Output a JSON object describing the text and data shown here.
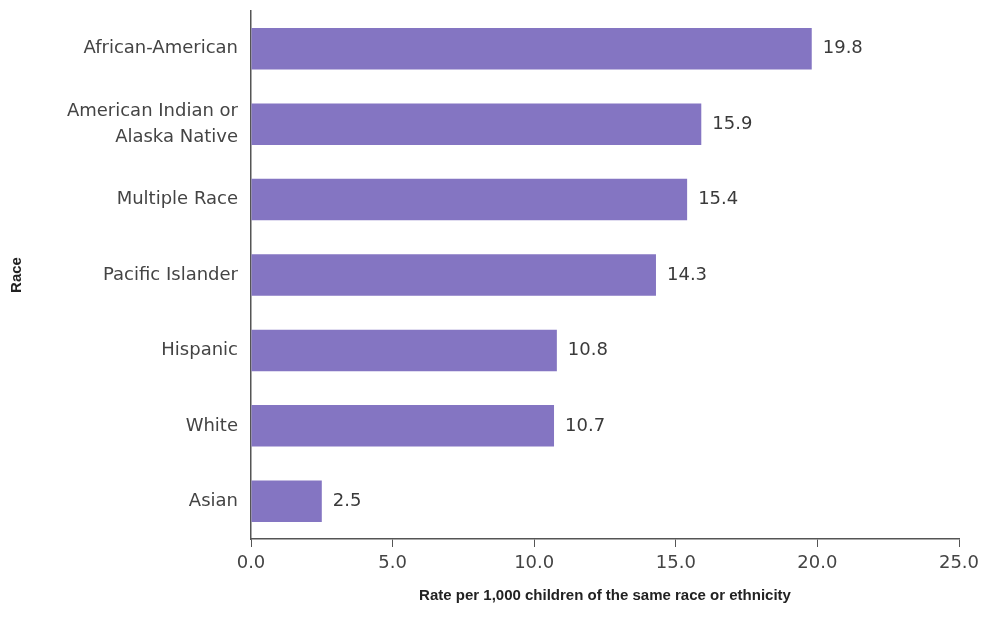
{
  "chart_data": {
    "type": "bar",
    "orientation": "horizontal",
    "xlabel": "Rate per 1,000 children of the same race or ethnicity",
    "ylabel": "Race",
    "categories": [
      "African-American",
      "American Indian or Alaska Native",
      "Multiple Race",
      "Pacific Islander",
      "Hispanic",
      "White",
      "Asian"
    ],
    "values": [
      19.8,
      15.9,
      15.4,
      14.3,
      10.8,
      10.7,
      2.5
    ],
    "color": "#8475c2",
    "xlim": [
      0,
      25
    ],
    "xticks": [
      {
        "value": 0,
        "label": "0.0"
      },
      {
        "value": 5,
        "label": "5.0"
      },
      {
        "value": 10,
        "label": "10.0"
      },
      {
        "value": 15,
        "label": "15.0"
      },
      {
        "value": 20,
        "label": "20.0"
      },
      {
        "value": 25,
        "label": "25.0"
      }
    ],
    "data_labels": true,
    "grid": false
  }
}
